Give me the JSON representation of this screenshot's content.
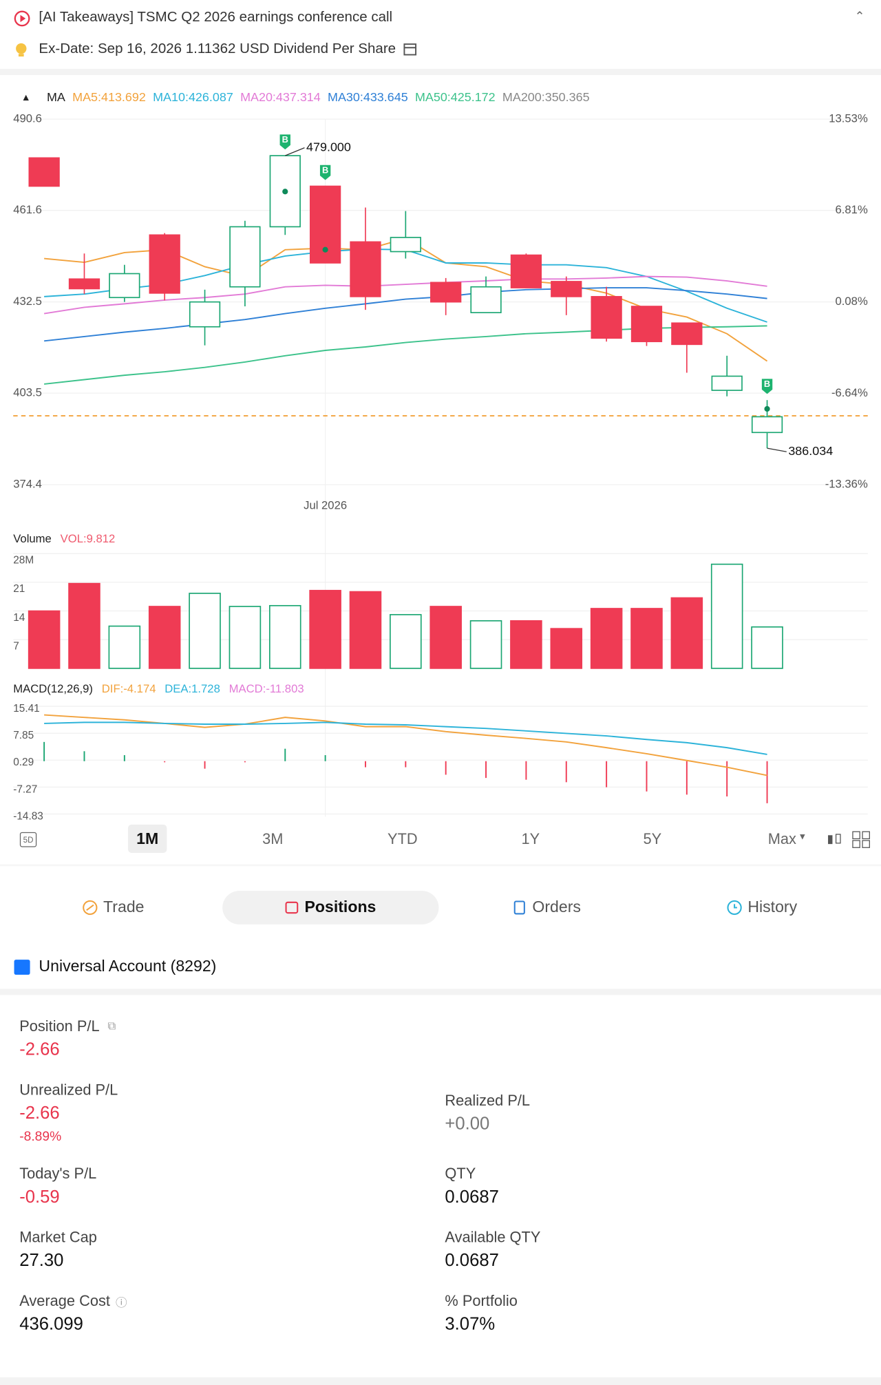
{
  "header": {
    "news": "[AI Takeaways] TSMC Q2 2026 earnings conference call",
    "dividend": "Ex-Date: Sep 16, 2026 1.11362 USD Dividend Per Share"
  },
  "chart_data": [
    {
      "type": "candlestick",
      "title": "MA",
      "categories": [
        null,
        null,
        null,
        null,
        null,
        null,
        null,
        "Jul 2026",
        null,
        null,
        null,
        null,
        null,
        null,
        null,
        null,
        null,
        null,
        null
      ],
      "open": [
        478.3,
        439.8,
        433.9,
        453.8,
        424.6,
        437.3,
        456.4,
        469.3,
        451.6,
        448.5,
        438.7,
        429.1,
        447.4,
        439.0,
        434.2,
        431.1,
        425.8,
        404.4,
        391.0
      ],
      "high": [
        478.3,
        447.9,
        444.3,
        454.4,
        436.4,
        458.3,
        479.0,
        469.3,
        462.5,
        461.4,
        440.1,
        440.6,
        447.9,
        440.6,
        437.3,
        431.1,
        425.8,
        415.4,
        401.3
      ],
      "low": [
        469.3,
        435.0,
        432.5,
        433.0,
        418.7,
        431.1,
        453.8,
        444.9,
        430.0,
        446.3,
        428.3,
        429.1,
        437.0,
        428.3,
        419.9,
        418.5,
        410.0,
        402.5,
        386.0
      ],
      "close": [
        469.3,
        436.7,
        441.5,
        435.3,
        432.5,
        456.4,
        479.0,
        444.9,
        434.2,
        453.0,
        432.5,
        437.3,
        437.0,
        434.2,
        421.0,
        419.9,
        419.0,
        408.9,
        396.0
      ],
      "up_color": "#1aa672",
      "down_color": "#ef3b54",
      "series": [
        {
          "name": "MA5:413.692",
          "color": "#f2a23c",
          "values": [
            446.3,
            445.1,
            448.2,
            449.1,
            443.7,
            440.6,
            449.1,
            449.6,
            449.1,
            452.7,
            444.9,
            443.7,
            439.2,
            438.1,
            435.3,
            430.3,
            427.7,
            422.4,
            413.7
          ]
        },
        {
          "name": "MA10:426.087",
          "color": "#2cb3d9",
          "values": [
            434.2,
            435.0,
            436.7,
            438.1,
            440.9,
            444.3,
            447.1,
            448.5,
            449.3,
            449.1,
            444.9,
            444.9,
            444.3,
            444.3,
            443.4,
            440.6,
            435.9,
            430.5,
            426.1
          ]
        },
        {
          "name": "MA20:437.314",
          "color": "#e27ad6",
          "values": [
            428.8,
            430.8,
            431.9,
            433.1,
            433.9,
            435.0,
            437.3,
            437.8,
            437.5,
            438.1,
            438.7,
            439.2,
            439.8,
            439.8,
            440.1,
            440.6,
            440.4,
            439.2,
            437.5
          ]
        },
        {
          "name": "MA30:433.645",
          "color": "#2f80d6",
          "values": [
            420.1,
            421.5,
            422.9,
            424.1,
            425.5,
            426.9,
            428.8,
            430.5,
            431.9,
            433.4,
            434.2,
            435.6,
            436.4,
            436.7,
            437.0,
            437.0,
            436.1,
            435.0,
            433.6
          ]
        },
        {
          "name": "MA50:425.172",
          "color": "#3cc28b",
          "values": [
            406.4,
            407.8,
            409.2,
            410.3,
            411.7,
            413.4,
            415.4,
            417.1,
            418.2,
            419.6,
            420.7,
            421.5,
            422.4,
            422.9,
            423.5,
            424.1,
            424.4,
            424.6,
            424.9
          ]
        },
        {
          "name": "MA200:350.365",
          "color": "#888888",
          "values": [
            null,
            null,
            null,
            null,
            null,
            null,
            null,
            null,
            null,
            null,
            null,
            null,
            null,
            null,
            null,
            null,
            null,
            null,
            null
          ]
        }
      ],
      "ylim": [
        374.4,
        490.6
      ],
      "yticks": [
        490.6,
        461.6,
        432.5,
        403.5,
        374.4
      ],
      "y2lim": [
        -13.36,
        13.53
      ],
      "y2ticks": [
        {
          "value": 13.53,
          "label": "13.53%"
        },
        {
          "value": 6.81,
          "label": "6.81%"
        },
        {
          "value": 0.08,
          "label": "0.08%"
        },
        {
          "value": -6.64,
          "label": "-6.64%"
        },
        {
          "value": -13.36,
          "label": "-13.36%"
        }
      ],
      "grid": true,
      "price_line": {
        "value": 396.3,
        "color": "#f2a23c"
      },
      "markers": [
        {
          "index": 6,
          "label": "B",
          "price": 467.6
        },
        {
          "index": 7,
          "label": "B",
          "price": 449.1
        },
        {
          "index": 18,
          "label": "B",
          "price": 398.5
        }
      ],
      "annotations": [
        {
          "index": 6,
          "value": 479.0,
          "label": "479.000"
        },
        {
          "index": 18,
          "value": 386.0,
          "label": "386.034"
        }
      ]
    },
    {
      "type": "bar",
      "title": "Volume",
      "legend": "VOL:9.812",
      "legend_color": "#ef5a6e",
      "values": [
        14.0,
        20.7,
        10.3,
        15.1,
        18.3,
        15.1,
        15.3,
        19.0,
        18.7,
        13.1,
        15.1,
        11.6,
        11.6,
        9.7,
        14.6,
        14.6,
        17.2,
        25.4,
        10.1
      ],
      "ylim": [
        0,
        28
      ],
      "yticks": [
        {
          "value": 28,
          "label": "28M"
        },
        21,
        14,
        7
      ],
      "grid": true
    },
    {
      "type": "macd",
      "title": "MACD(12,26,9)",
      "series": [
        {
          "name": "DIF:-4.174",
          "color": "#f2a23c",
          "values": [
            13.0,
            12.3,
            11.6,
            10.6,
            9.5,
            10.4,
            12.3,
            11.3,
            9.7,
            9.7,
            8.3,
            7.3,
            6.4,
            5.4,
            3.8,
            2.1,
            0.2,
            -1.7,
            -4.0
          ]
        },
        {
          "name": "DEA:1.728",
          "color": "#2cb3d9",
          "values": [
            10.6,
            10.9,
            10.9,
            10.6,
            10.4,
            10.4,
            10.6,
            10.9,
            10.4,
            10.2,
            9.7,
            9.2,
            8.5,
            7.8,
            7.1,
            6.1,
            5.2,
            3.8,
            1.9
          ]
        }
      ],
      "histogram": {
        "name": "MACD:-11.803",
        "color": "#e27ad6",
        "values": [
          5.4,
          2.8,
          1.7,
          -0.3,
          -2.1,
          -0.3,
          3.5,
          1.7,
          -1.7,
          -1.7,
          -3.8,
          -4.7,
          -5.2,
          -5.9,
          -7.3,
          -8.5,
          -9.4,
          -9.9,
          -11.8
        ]
      },
      "ylim": [
        -14.83,
        15.41
      ],
      "yticks": [
        15.41,
        7.85,
        0.29,
        -7.27,
        -14.83
      ],
      "grid": true
    }
  ],
  "periods": [
    "5D",
    "1M",
    "3M",
    "YTD",
    "1Y",
    "5Y",
    "Max"
  ],
  "tabs": [
    "Trade",
    "Positions",
    "Orders",
    "History"
  ],
  "account": "Universal Account (8292)",
  "positions": {
    "position_pl": {
      "label": "Position P/L",
      "value": "-2.66"
    },
    "unrealized_pl": {
      "label": "Unrealized P/L",
      "value": "-2.66",
      "percent": "-8.89%"
    },
    "realized_pl": {
      "label": "Realized P/L",
      "value": "+0.00"
    },
    "todays_pl": {
      "label": "Today's P/L",
      "value": "-0.59"
    },
    "qty": {
      "label": "QTY",
      "value": "0.0687"
    },
    "market_cap": {
      "label": "Market Cap",
      "value": "27.30"
    },
    "available_qty": {
      "label": "Available QTY",
      "value": "0.0687"
    },
    "average_cost": {
      "label": "Average Cost",
      "value": "436.099"
    },
    "portfolio": {
      "label": "% Portfolio",
      "value": "3.07%"
    }
  }
}
